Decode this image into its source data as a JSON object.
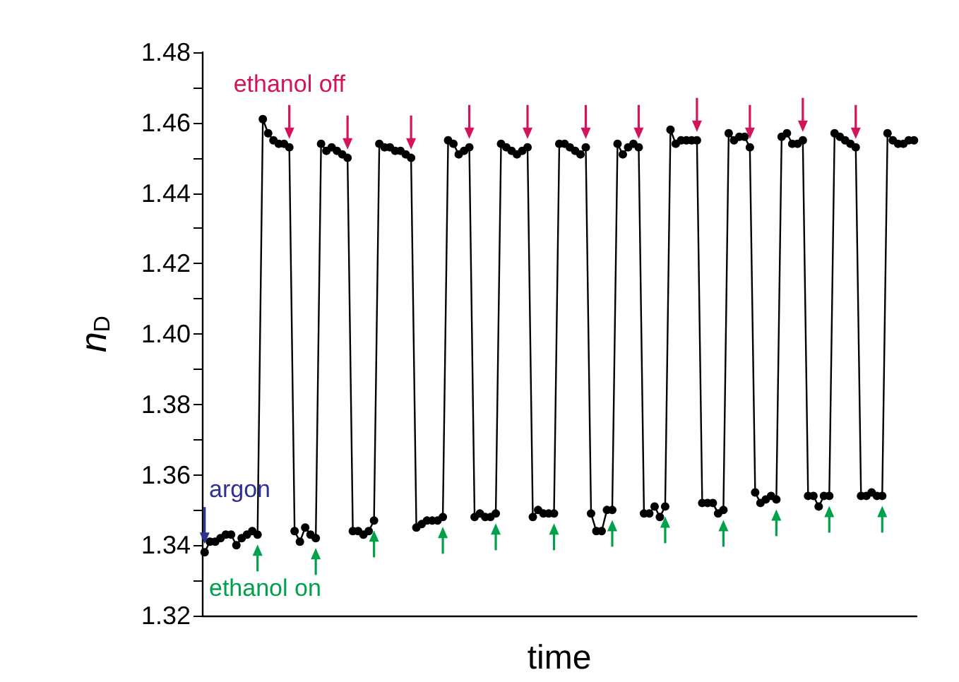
{
  "chart_data": {
    "type": "line",
    "xlabel": "time",
    "ylabel": "n$_{D}$",
    "annotations": [
      "argon",
      "ethanol off",
      "ethanol on"
    ],
    "categories": [
      null,
      null,
      null,
      null,
      null,
      null,
      null,
      null,
      null,
      null,
      null,
      null,
      null,
      null,
      null,
      null,
      null,
      null,
      null,
      null,
      null,
      null,
      null,
      null,
      null,
      null,
      null,
      null,
      null,
      null,
      null,
      null,
      null,
      null,
      null,
      null,
      null,
      null,
      null,
      null,
      null,
      null,
      null,
      null,
      null,
      null,
      null,
      null,
      null,
      null,
      null,
      null,
      null,
      null,
      null,
      null,
      null,
      null,
      null,
      null,
      null,
      null,
      null,
      null,
      null,
      null,
      null,
      null,
      null,
      null,
      null,
      null,
      null,
      null,
      null,
      null,
      null,
      null,
      null,
      null,
      null,
      null,
      null,
      null,
      null,
      null,
      null,
      null,
      null,
      null,
      null,
      null,
      null,
      null,
      null,
      null,
      null,
      null,
      null,
      null,
      null,
      null,
      null,
      null,
      null,
      null,
      null,
      null,
      null,
      null,
      null,
      null,
      null,
      null,
      null,
      null,
      null,
      null,
      null,
      null,
      null,
      null,
      null,
      null,
      null,
      null,
      null,
      null,
      null,
      null,
      null,
      null,
      null,
      null,
      null
    ],
    "series": [
      {
        "color": "#000000",
        "values": [
          1.338,
          1.341,
          1.341,
          1.342,
          1.343,
          1.343,
          1.34,
          1.342,
          1.343,
          1.344,
          1.343,
          1.461,
          1.457,
          1.455,
          1.454,
          1.454,
          1.453,
          1.344,
          1.341,
          1.345,
          1.343,
          1.342,
          1.454,
          1.452,
          1.453,
          1.452,
          1.451,
          1.45,
          1.344,
          1.344,
          1.343,
          1.344,
          1.347,
          1.454,
          1.453,
          1.453,
          1.452,
          1.452,
          1.451,
          1.45,
          1.345,
          1.346,
          1.347,
          1.347,
          1.347,
          1.348,
          1.455,
          1.454,
          1.451,
          1.452,
          1.453,
          1.348,
          1.349,
          1.348,
          1.348,
          1.349,
          1.454,
          1.453,
          1.452,
          1.451,
          1.452,
          1.453,
          1.348,
          1.35,
          1.349,
          1.349,
          1.349,
          1.454,
          1.454,
          1.453,
          1.452,
          1.451,
          1.453,
          1.349,
          1.344,
          1.344,
          1.35,
          1.35,
          1.454,
          1.451,
          1.453,
          1.454,
          1.453,
          1.349,
          1.349,
          1.351,
          1.348,
          1.351,
          1.458,
          1.454,
          1.455,
          1.455,
          1.455,
          1.455,
          1.352,
          1.352,
          1.352,
          1.349,
          1.35,
          1.457,
          1.455,
          1.456,
          1.456,
          1.453,
          1.355,
          1.352,
          1.353,
          1.354,
          1.353,
          1.456,
          1.457,
          1.454,
          1.454,
          1.455,
          1.354,
          1.354,
          1.351,
          1.354,
          1.354,
          1.457,
          1.456,
          1.455,
          1.454,
          1.453,
          1.354,
          1.354,
          1.355,
          1.354,
          1.354,
          1.457,
          1.455,
          1.454,
          1.454,
          1.455,
          1.455
        ]
      }
    ],
    "ylim": [
      1.32,
      1.48
    ],
    "yticks": [
      1.32,
      {
        "value": 1.33,
        "label": null
      },
      1.34,
      {
        "value": 1.35,
        "label": null
      },
      1.36,
      {
        "value": 1.37,
        "label": null
      },
      1.38,
      {
        "value": 1.39,
        "label": null
      },
      {
        "value": 1.4,
        "label": "1.40"
      },
      {
        "value": 1.41,
        "label": null
      },
      1.42,
      {
        "value": 1.43,
        "label": null
      },
      1.44,
      {
        "value": 1.45,
        "label": null
      },
      1.46,
      {
        "value": 1.47,
        "label": null
      },
      1.48
    ],
    "marker": "circle",
    "line_style": "solid",
    "tick_labels": "y"
  }
}
